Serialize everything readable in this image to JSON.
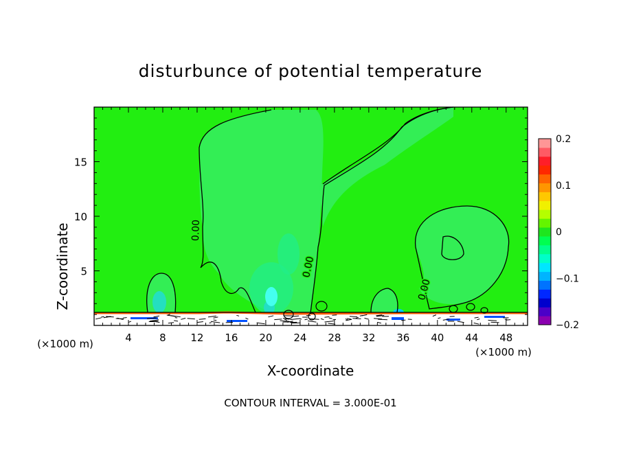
{
  "chart_data": {
    "type": "heatmap",
    "title": "disturbunce of potential temperature",
    "xlabel": "X-coordinate",
    "ylabel": "Z-coordinate",
    "x_unit_left": "(×1000 m)",
    "x_unit_right": "(×1000 m)",
    "xlim": [
      0,
      50.5
    ],
    "ylim": [
      0,
      20
    ],
    "xticks": [
      4,
      8,
      12,
      16,
      20,
      24,
      28,
      32,
      36,
      40,
      44,
      48
    ],
    "yticks": [
      5,
      10,
      15
    ],
    "footer": "CONTOUR INTERVAL = 3.000E-01",
    "contour_labels": [
      {
        "text": "0.00",
        "x": 12.2,
        "z": 8.7
      },
      {
        "text": "0.00",
        "x": 25.3,
        "z": 5.3
      },
      {
        "text": "0.00",
        "x": 38.8,
        "z": 3.2
      }
    ],
    "colorbar": {
      "min": -0.2,
      "max": 0.2,
      "tick_values": [
        0.2,
        0.1,
        0,
        -0.1,
        -0.2
      ],
      "tick_labels": [
        "0.2",
        "0.1",
        "0",
        "−0.1",
        "−0.2"
      ],
      "levels": [
        "#8b00b0",
        "#4b00c8",
        "#0000cd",
        "#0028ff",
        "#0073ff",
        "#00b4ff",
        "#00e6ff",
        "#00ffc8",
        "#00ff8c",
        "#00ff50",
        "#1ee61e",
        "#64f500",
        "#b4ff00",
        "#f0f000",
        "#ffc800",
        "#ff9600",
        "#ff6400",
        "#ff2800",
        "#ff1e28",
        "#ff5a64",
        "#ff9696"
      ]
    },
    "colors": {
      "background_field": "#22ee11",
      "weak_negative": "#33ee55",
      "moderate_negative": "#22ee88",
      "contour_line": "#000000"
    }
  }
}
